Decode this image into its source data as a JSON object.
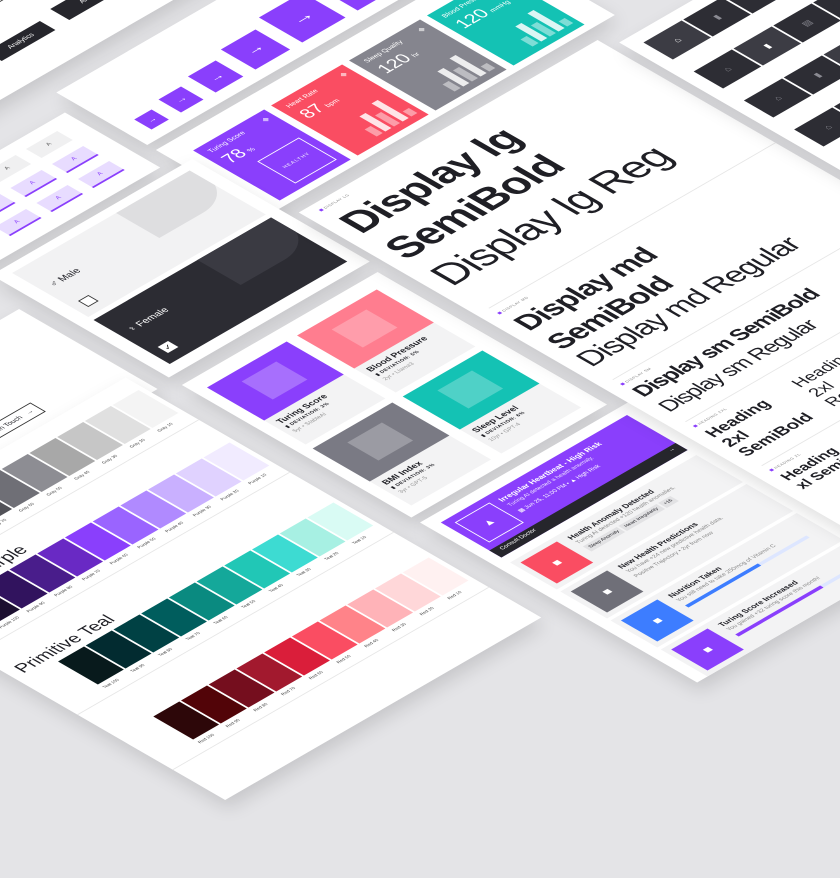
{
  "colors": {
    "purple": "#8a3ffc",
    "red": "#fa4d62",
    "gray": "#8a8a92",
    "teal": "#14c2b4",
    "dark": "#26262c",
    "blue": "#3d7dff"
  },
  "analytics": {
    "label": "Analytics"
  },
  "arrow_buttons": {
    "icon": "arrow-right-icon",
    "count": 6
  },
  "tabs": {
    "label": "A"
  },
  "metrics": [
    {
      "title": "Turing Score",
      "value": "78",
      "unit": "%",
      "badge": "HEALTHY",
      "color": "#8a3ffc",
      "icon": "grid-icon"
    },
    {
      "title": "Heart Rate",
      "value": "87",
      "unit": "bpm",
      "color": "#fa4d62",
      "icon": "heart-icon"
    },
    {
      "title": "Sleep Quality",
      "value": "120",
      "unit": "hr",
      "color": "#85858e",
      "icon": "bed-icon"
    },
    {
      "title": "Blood Pressure",
      "value": "120",
      "unit": "mmHg",
      "color": "#14c2b4",
      "icon": "pulse-icon"
    }
  ],
  "gender": {
    "male": "Male",
    "female": "Female",
    "male_checked": false,
    "female_checked": true
  },
  "contact": {
    "label": "Get In Touch"
  },
  "health_cards": [
    {
      "title": "Turing Score",
      "deviation": "DEVIATION: 3%",
      "meta": "5yr • StableAI",
      "color": "#8a3ffc"
    },
    {
      "title": "Blood Pressure",
      "deviation": "DEVIATION: 5%",
      "meta": "2yr • Llama3",
      "color": "#ff7d8f"
    },
    {
      "title": "BMI Index",
      "deviation": "DEVIATION: 3%",
      "meta": "3yr • GPT-5",
      "color": "#7a7a84"
    },
    {
      "title": "Sleep Level",
      "deviation": "DEVIATION: 6%",
      "meta": "10yr • GPT-4",
      "color": "#14c2b4"
    }
  ],
  "alerts": {
    "primary": {
      "title": "Irregular Heartbeat - High Risk",
      "desc": "Turing AI detected a health anomaly.",
      "date": "Jun 25, 11:00 PM",
      "risk": "High Risk",
      "action": "Consult Doctor"
    },
    "items": [
      {
        "title": "Health Anomaly Detected",
        "desc": "Turing AI detected +120 health anomalies.",
        "tags": [
          "Sleep Anomaly",
          "Heart Irregularity",
          "+16"
        ],
        "color": "#fa4d62",
        "icon": "chart-icon"
      },
      {
        "title": "New Health Predictions",
        "desc": "You have +24 new predictive health data.",
        "meta": "Positive Trajectory • 2yr from now",
        "color": "#6f6f78",
        "icon": "calendar-icon"
      },
      {
        "title": "Nutrition Taken",
        "desc": "You still need to take 250mcg of Vitamin C",
        "progress": 0.6,
        "color": "#3d7dff",
        "icon": "pill-icon"
      },
      {
        "title": "Turing Score Increased",
        "desc": "You gained +32 turing score this month!",
        "progress": 0.7,
        "color": "#8a3ffc",
        "icon": "trend-icon"
      }
    ]
  },
  "typography": {
    "lg_label": "DISPLAY LG",
    "lg_bold": [
      "Display lg",
      "SemiBold"
    ],
    "lg_reg": "Display lg Reg",
    "md_label": "DISPLAY MD",
    "md_bold": [
      "Display md",
      "SemiBold"
    ],
    "md_reg": "Display md Regular",
    "sm_label": "DISPLAY SM",
    "sm_bold": "Display sm SemiBold",
    "sm_reg": "Display sm Regular",
    "h2xl_label": "HEADING 2XL",
    "h2xl_bold": [
      "Heading",
      "2xl",
      "SemiBold"
    ],
    "h2xl_reg": [
      "Heading",
      "2xl",
      "Regular"
    ],
    "hxl_label": "HEADING XL",
    "hxl_bold": [
      "Heading",
      "xl SemiBold"
    ]
  },
  "palettes": [
    {
      "name": "Gray",
      "title": "",
      "swatches": [
        [
          "Gray 10",
          "#f4f4f4"
        ],
        [
          "Gray 20",
          "#e0e0e0"
        ],
        [
          "Gray 30",
          "#c6c6c6"
        ],
        [
          "Gray 40",
          "#a8a8a8"
        ],
        [
          "Gray 50",
          "#8d8d93"
        ],
        [
          "Gray 60",
          "#6f6f76"
        ],
        [
          "Gray 70",
          "#525258"
        ],
        [
          "Gray 80",
          "#393940"
        ],
        [
          "Gray 90",
          "#262629"
        ],
        [
          "Gray 100",
          "#161618"
        ]
      ]
    },
    {
      "name": "Purple",
      "title": "Primitive Purple",
      "swatches": [
        [
          "Purple 10",
          "#f1ebff"
        ],
        [
          "Purple 20",
          "#e0d2ff"
        ],
        [
          "Purple 30",
          "#c9b0ff"
        ],
        [
          "Purple 40",
          "#b08aff"
        ],
        [
          "Purple 50",
          "#9a64ff"
        ],
        [
          "Purple 60",
          "#8a3ffc"
        ],
        [
          "Purple 70",
          "#6929c4"
        ],
        [
          "Purple 80",
          "#491d8b"
        ],
        [
          "Purple 90",
          "#31135e"
        ],
        [
          "Purple 100",
          "#1c0f30"
        ]
      ]
    },
    {
      "name": "Teal",
      "title": "Primitive Teal",
      "swatches": [
        [
          "Teal 10",
          "#d9fbf4"
        ],
        [
          "Teal 20",
          "#a7f0e3"
        ],
        [
          "Teal 30",
          "#3ddbd2"
        ],
        [
          "Teal 40",
          "#21c7b6"
        ],
        [
          "Teal 50",
          "#14a89a"
        ],
        [
          "Teal 60",
          "#0a8a80"
        ],
        [
          "Teal 70",
          "#005d5d"
        ],
        [
          "Teal 80",
          "#004144"
        ],
        [
          "Teal 90",
          "#022b30"
        ],
        [
          "Teal 100",
          "#081a1c"
        ]
      ]
    },
    {
      "name": "Red",
      "title": "",
      "swatches": [
        [
          "Red 10",
          "#fff1f1"
        ],
        [
          "Red 20",
          "#ffd7d9"
        ],
        [
          "Red 30",
          "#ffb3b8"
        ],
        [
          "Red 40",
          "#ff8389"
        ],
        [
          "Red 50",
          "#fa4d62"
        ],
        [
          "Red 60",
          "#da1e3a"
        ],
        [
          "Red 70",
          "#a2192e"
        ],
        [
          "Red 80",
          "#750e1e"
        ],
        [
          "Red 90",
          "#520408"
        ],
        [
          "Red 100",
          "#2d0709"
        ]
      ]
    }
  ],
  "nav": {
    "icons": [
      "home-icon",
      "chart-icon",
      "chat-icon",
      "grid-icon"
    ],
    "glyphs": [
      "⌂",
      "▮",
      "▤",
      "✣"
    ],
    "rows": 6
  }
}
